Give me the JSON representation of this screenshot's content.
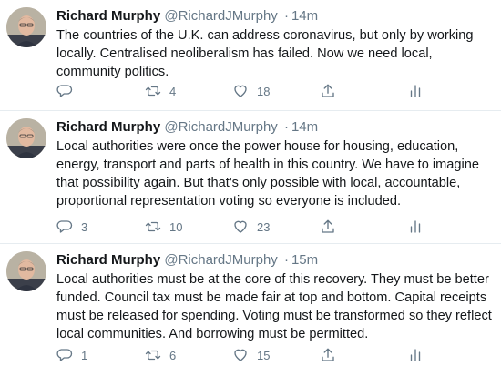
{
  "tweets": [
    {
      "name": "Richard Murphy",
      "handle": "@RichardJMurphy",
      "separator": "·",
      "time": "14m",
      "text": "The countries of the U.K. can address coronavirus, but only by working locally. Centralised neoliberalism has failed. Now we need local, community politics.",
      "replies": "",
      "retweets": "4",
      "likes": "18"
    },
    {
      "name": "Richard Murphy",
      "handle": "@RichardJMurphy",
      "separator": "·",
      "time": "14m",
      "text": "Local authorities were once the power house for housing, education, energy, transport and parts of health in this country. We have to imagine that possibility again. But that's only possible with local, accountable, proportional representation voting so everyone is included.",
      "replies": "3",
      "retweets": "10",
      "likes": "23"
    },
    {
      "name": "Richard Murphy",
      "handle": "@RichardJMurphy",
      "separator": "·",
      "time": "15m",
      "text": "Local authorities must be at the core of this recovery. They must be better funded. Council tax must be made fair at top and bottom. Capital receipts must be released for spending. Voting must be transformed so they reflect local communities. And borrowing must be permitted.",
      "replies": "1",
      "retweets": "6",
      "likes": "15"
    }
  ],
  "icons": {
    "reply": "reply-icon",
    "retweet": "retweet-icon",
    "like": "heart-icon",
    "share": "share-icon",
    "analytics": "analytics-icon"
  },
  "colors": {
    "text": "#14171a",
    "muted": "#657786",
    "divider": "#e6ecf0"
  }
}
